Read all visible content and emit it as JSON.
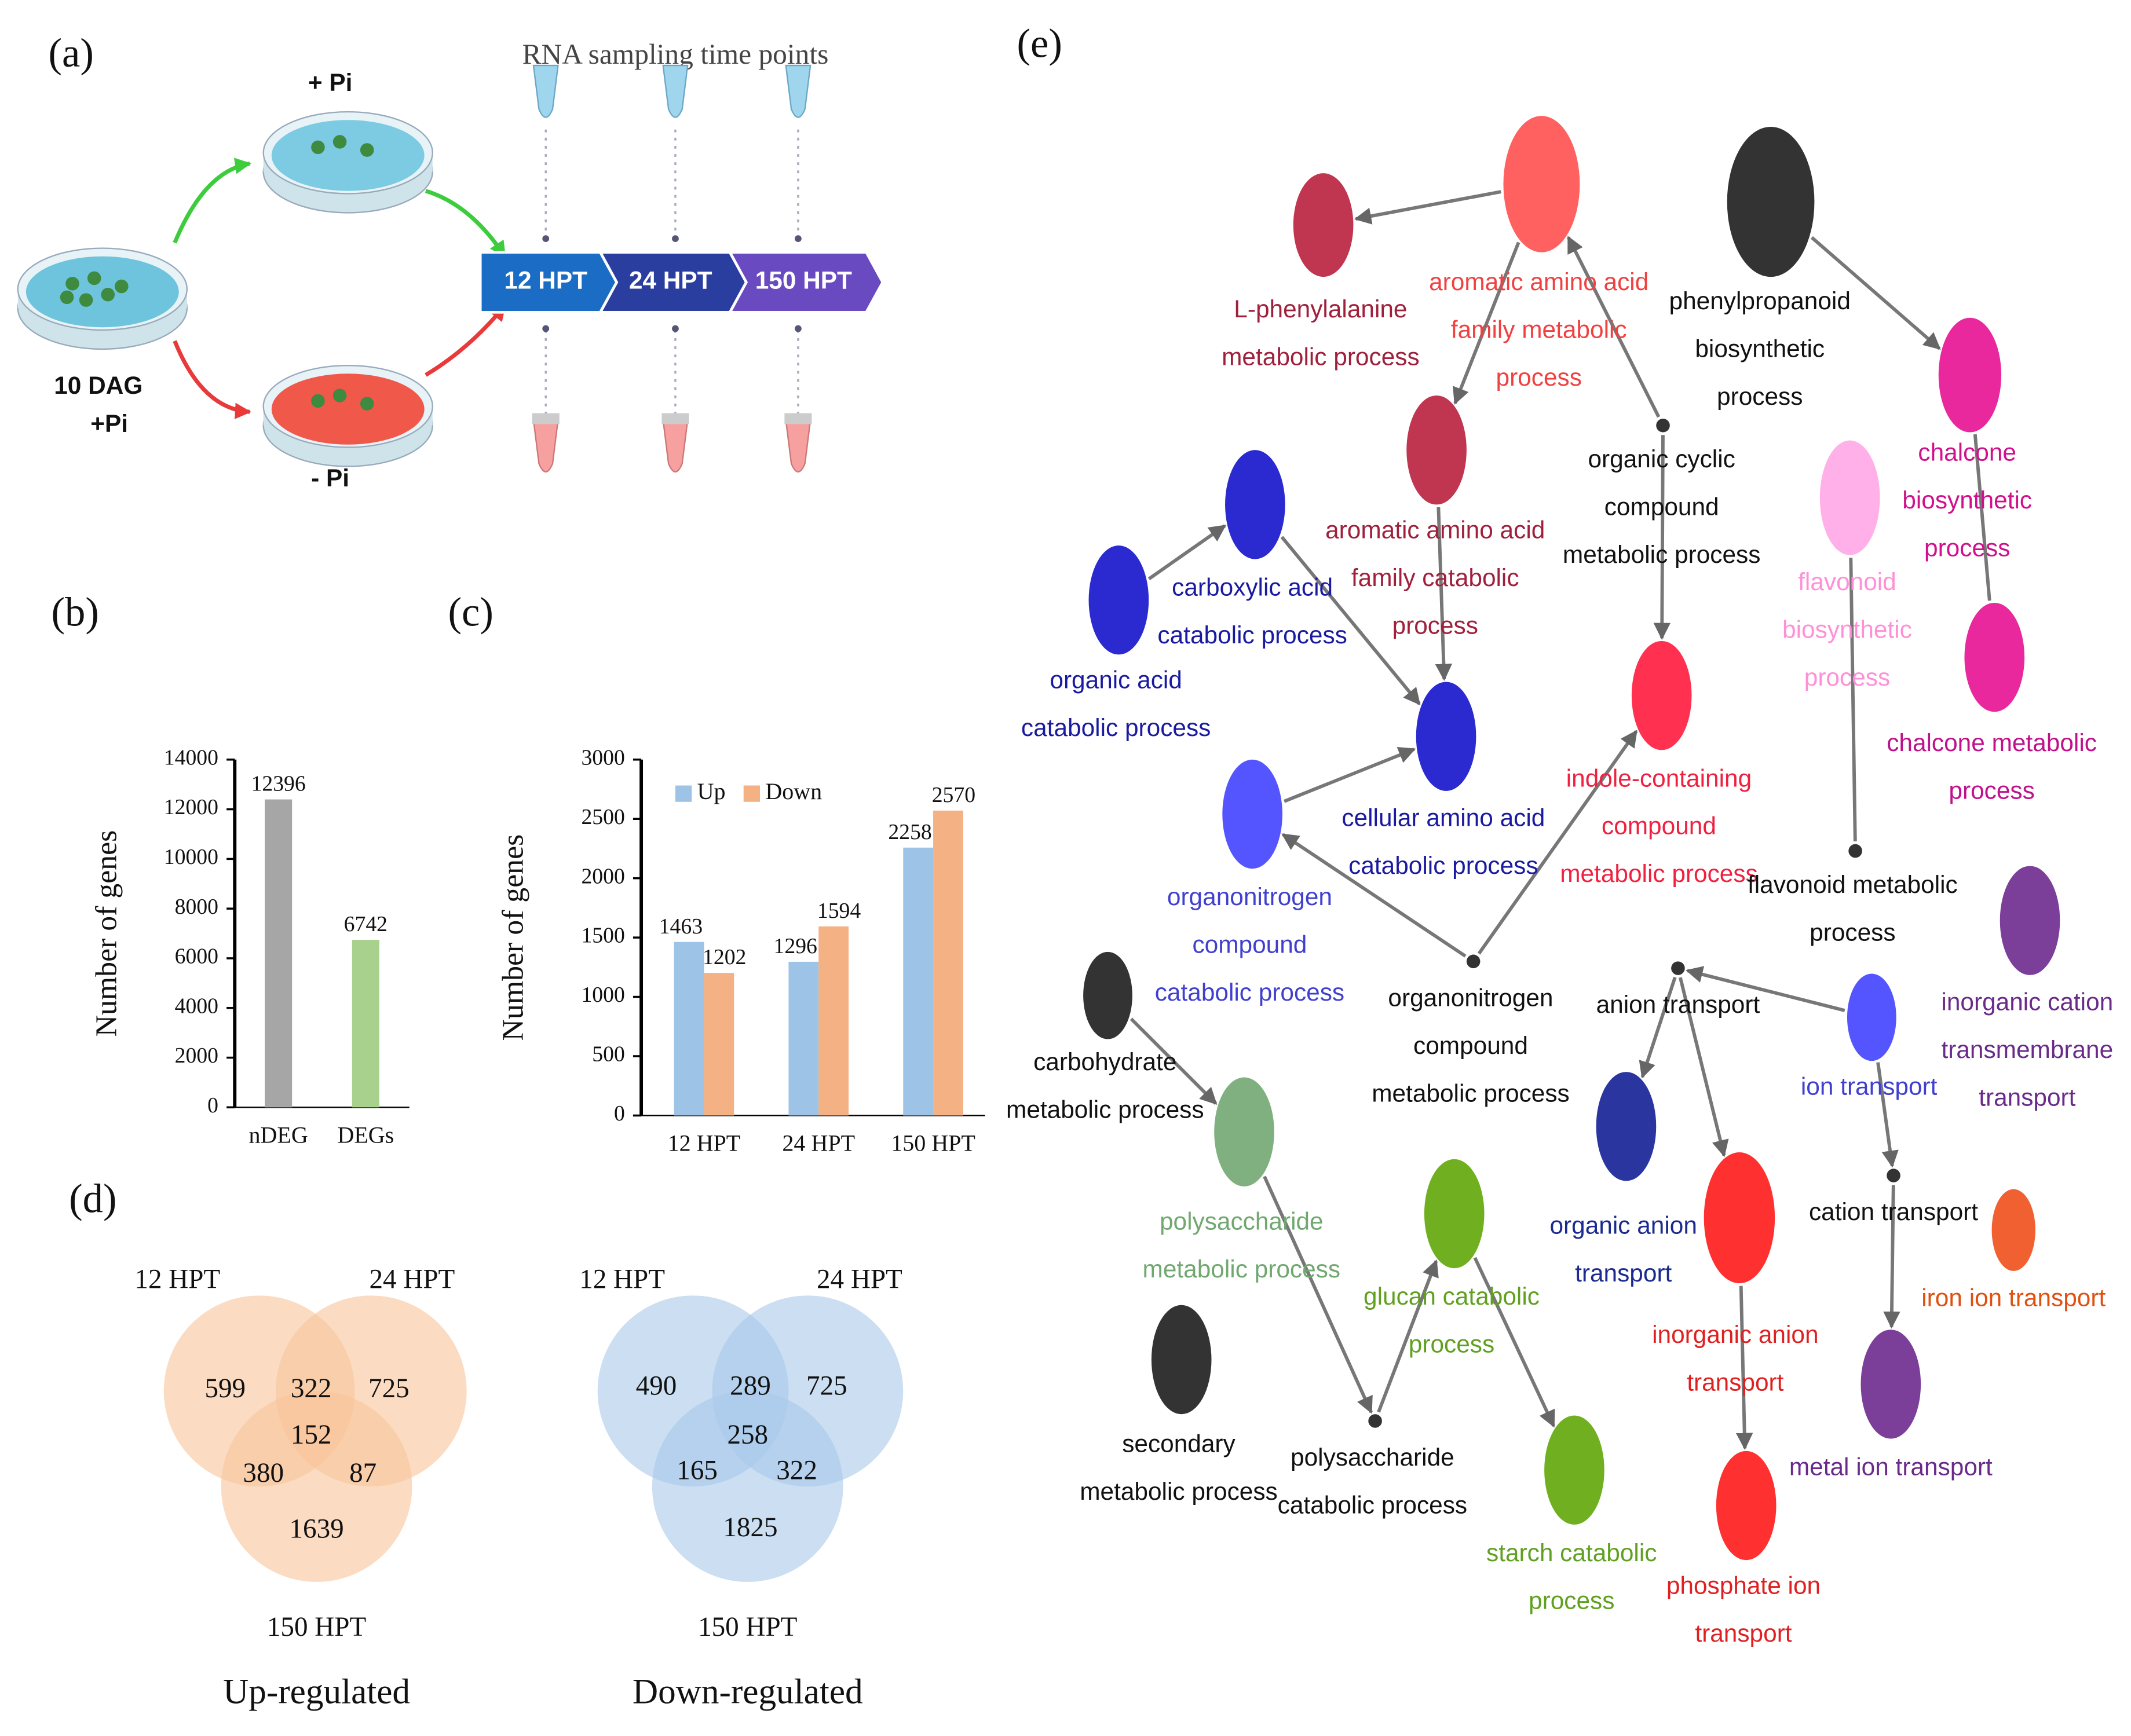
{
  "panel_labels": {
    "a": "(a)",
    "b": "(b)",
    "c": "(c)",
    "d": "(d)",
    "e": "(e)"
  },
  "sampling": {
    "title": "RNA sampling time points",
    "plus_pi": "+ Pi",
    "minus_pi": "- Pi",
    "start": [
      "10 DAG",
      "+Pi"
    ],
    "time_points": [
      "12 HPT",
      "24 HPT",
      "150 HPT"
    ],
    "colors": [
      "#1a6cc4",
      "#2a3ea0",
      "#6a4ac0"
    ]
  },
  "chart_data": [
    {
      "type": "bar",
      "ylabel": "Number of genes",
      "categories": [
        "nDEG",
        "DEGs"
      ],
      "values": [
        12396,
        6742
      ],
      "colors": [
        "#a6a6a6",
        "#a9d18e"
      ],
      "ylim": [
        0,
        14000
      ],
      "yticks": [
        0,
        2000,
        4000,
        6000,
        8000,
        10000,
        12000,
        14000
      ]
    },
    {
      "type": "grouped-bar",
      "ylabel": "Number of genes",
      "categories": [
        "12 HPT",
        "24 HPT",
        "150 HPT"
      ],
      "series": [
        {
          "name": "Up",
          "color": "#9dc3e6",
          "values": [
            1463,
            1296,
            2258
          ]
        },
        {
          "name": "Down",
          "color": "#f4b183",
          "values": [
            1202,
            1594,
            2570
          ]
        }
      ],
      "ylim": [
        0,
        3000
      ],
      "yticks": [
        0,
        500,
        1000,
        1500,
        2000,
        2500,
        3000
      ],
      "legend": "top-left"
    }
  ],
  "venn": [
    {
      "title": "Up-regulated",
      "sets": [
        "12 HPT",
        "24 HPT",
        "150 HPT"
      ],
      "counts": [
        599,
        322,
        725,
        152,
        380,
        87,
        1639
      ],
      "color": "#f8c49a"
    },
    {
      "title": "Down-regulated",
      "sets": [
        "12 HPT",
        "24 HPT",
        "150 HPT"
      ],
      "counts": [
        490,
        289,
        725,
        258,
        165,
        322,
        1825
      ],
      "color": "#a9c8ea"
    }
  ],
  "network": {
    "nodes": [
      {
        "label": [
          "L-phenylalanine",
          "metabolic process"
        ],
        "color": "#c0354f",
        "label_color": "#a0203c"
      },
      {
        "label": [
          "aromatic amino acid",
          "family metabolic",
          "process"
        ],
        "color": "#ff6060",
        "label_color": "#f04040"
      },
      {
        "label": [
          "phenylpropanoid",
          "biosynthetic",
          "process"
        ],
        "color": "#333333",
        "label_color": "#111111"
      },
      {
        "label": [
          "chalcone",
          "biosynthetic",
          "process"
        ],
        "color": "#e8289c",
        "label_color": "#d0108c"
      },
      {
        "label": [
          "aromatic amino acid",
          "family catabolic",
          "process"
        ],
        "color": "#c0354f",
        "label_color": "#a0203c"
      },
      {
        "label": [
          "organic cyclic",
          "compound",
          "metabolic process"
        ],
        "color": "#333333",
        "label_color": "#111111"
      },
      {
        "label": [
          "flavonoid",
          "biosynthetic",
          "process"
        ],
        "color": "#ffb0e8",
        "label_color": "#ff90d8"
      },
      {
        "label": [
          "chalcone metabolic",
          "process"
        ],
        "color": "#e8289c",
        "label_color": "#c0108c"
      },
      {
        "label": [
          "carboxylic acid",
          "catabolic process"
        ],
        "color": "#2a2ad0",
        "label_color": "#1a1aa0"
      },
      {
        "label": [
          "organic acid",
          "catabolic process"
        ],
        "color": "#2a2ad0",
        "label_color": "#1a1aa0"
      },
      {
        "label": [
          "cellular amino acid",
          "catabolic process"
        ],
        "color": "#2a2ad0",
        "label_color": "#1a1aa0"
      },
      {
        "label": [
          "indole-containing",
          "compound",
          "metabolic process"
        ],
        "color": "#ff3050",
        "label_color": "#f02040"
      },
      {
        "label": [
          "organonitrogen",
          "compound",
          "catabolic process"
        ],
        "color": "#5555ff",
        "label_color": "#4040d0"
      },
      {
        "label": [
          "flavonoid metabolic",
          "process"
        ],
        "color": "#333333",
        "label_color": "#111111"
      },
      {
        "label": [
          "inorganic cation",
          "transmembrane",
          "transport"
        ],
        "color": "#7b3f99",
        "label_color": "#6a2a8a"
      },
      {
        "label": [
          "organonitrogen",
          "compound",
          "metabolic process"
        ],
        "color": "#333333",
        "label_color": "#111111"
      },
      {
        "label": [
          "carbohydrate",
          "metabolic process"
        ],
        "color": "#333333",
        "label_color": "#111111"
      },
      {
        "label": [
          "anion transport"
        ],
        "color": "#333333",
        "label_color": "#111111"
      },
      {
        "label": [
          "ion transport"
        ],
        "color": "#5555ff",
        "label_color": "#4040d0"
      },
      {
        "label": [
          "polysaccharide",
          "metabolic process"
        ],
        "color": "#80b080",
        "label_color": "#70a870"
      },
      {
        "label": [
          "organic anion",
          "transport"
        ],
        "color": "#2a35a0",
        "label_color": "#1a2a90"
      },
      {
        "label": [
          "cation transport"
        ],
        "color": "#333333",
        "label_color": "#111111"
      },
      {
        "label": [
          "glucan catabolic",
          "process"
        ],
        "color": "#70b020",
        "label_color": "#60a020"
      },
      {
        "label": [
          "inorganic anion",
          "transport"
        ],
        "color": "#ff3030",
        "label_color": "#e02020"
      },
      {
        "label": [
          "iron ion transport"
        ],
        "color": "#f06030",
        "label_color": "#e05010"
      },
      {
        "label": [
          "secondary",
          "metabolic process"
        ],
        "color": "#333333",
        "label_color": "#111111"
      },
      {
        "label": [
          "polysaccharide",
          "catabolic process"
        ],
        "color": "#333333",
        "label_color": "#111111"
      },
      {
        "label": [
          "metal ion transport"
        ],
        "color": "#7b3f99",
        "label_color": "#6a2a8a"
      },
      {
        "label": [
          "starch catabolic",
          "process"
        ],
        "color": "#70b020",
        "label_color": "#60a020"
      },
      {
        "label": [
          "phosphate ion",
          "transport"
        ],
        "color": "#ff3030",
        "label_color": "#e02020"
      }
    ]
  }
}
